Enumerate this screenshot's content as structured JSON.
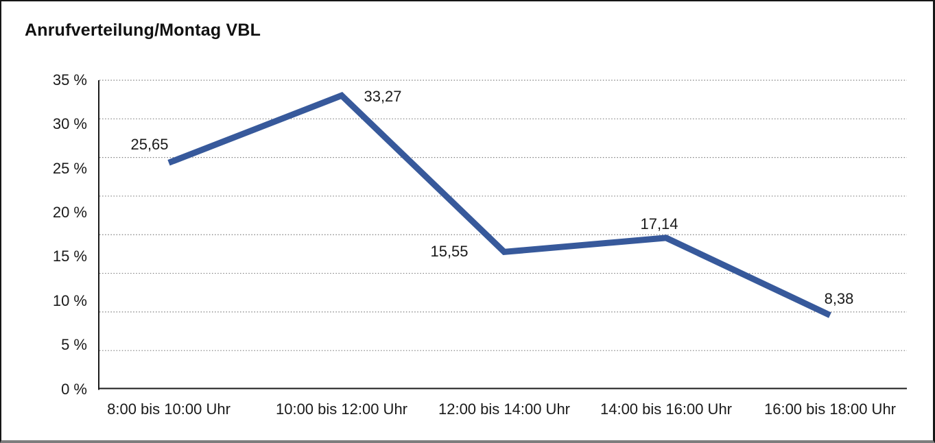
{
  "frame": {
    "background": "#ffffff",
    "border_color": "#161616",
    "bottom_shadow_color": "#7d7d7d"
  },
  "chart_data": {
    "type": "line",
    "title": "Anrufverteilung/Montag VBL",
    "categories": [
      "8:00 bis 10:00 Uhr",
      "10:00 bis 12:00 Uhr",
      "12:00 bis 14:00 Uhr",
      "14:00 bis 16:00 Uhr",
      "16:00 bis 18:00 Uhr"
    ],
    "values": [
      25.65,
      33.27,
      15.55,
      17.14,
      8.38
    ],
    "value_labels": [
      "25,65",
      "33,27",
      "15,55",
      "17,14",
      "8,38"
    ],
    "y_tick_labels": [
      "35 %",
      "30 %",
      "25 %",
      "20 %",
      "15 %",
      "10 %",
      "5 %",
      "0 %"
    ],
    "ylim": [
      0,
      35
    ],
    "y_tick_step": 5,
    "xlabel": "",
    "ylabel": "",
    "legend": "none",
    "grid": "horizontal-dotted",
    "grid_divisions": 8,
    "line_color": "#37599b",
    "grid_color": "#7e7e7e",
    "axis_color": "#1a1a1a",
    "text_color": "#1a1a1a"
  }
}
